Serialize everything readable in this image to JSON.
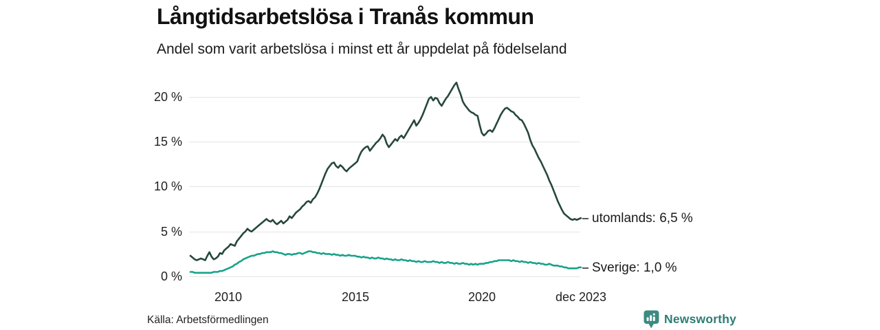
{
  "footer": {
    "source": "Källa: Arbetsförmedlingen",
    "brand": "Newsworthy"
  },
  "colors": {
    "utomlands_line": "#26473d",
    "sverige_line": "#17a28a",
    "grid": "#e4e4e4",
    "brand_teal": "#2e7d74",
    "brand_icon": "#3c8a80"
  },
  "chart_data": {
    "type": "line",
    "title": "Långtidsarbetslösa i Tranås kommun",
    "subtitle": "Andel som varit arbetslösa i minst ett år uppdelat på födelseland",
    "xlabel": "",
    "ylabel": "",
    "ylim": [
      0,
      22
    ],
    "yticks": [
      "20 %",
      "15 %",
      "10 %",
      "5 %",
      "0 %"
    ],
    "xticks": [
      {
        "label": "2010"
      },
      {
        "label": "2015"
      },
      {
        "label": "2020"
      },
      {
        "label": "dec 2023"
      }
    ],
    "grid": "horizontal-only",
    "legend_position": "end-of-line",
    "x_start": "2008-07",
    "x_end": "2023-12",
    "x_interval": "monthly",
    "series": [
      {
        "name": "utomlands",
        "label": "utomlands: 6,5 %",
        "end_value": 6.5,
        "color": "#26473d",
        "values": [
          2.3,
          2.1,
          1.9,
          1.8,
          1.9,
          2.0,
          1.9,
          1.8,
          2.3,
          2.7,
          2.2,
          1.9,
          2.0,
          2.2,
          2.6,
          2.5,
          2.9,
          3.1,
          3.3,
          3.6,
          3.5,
          3.4,
          3.9,
          4.2,
          4.5,
          4.8,
          5.0,
          5.3,
          5.1,
          5.0,
          5.2,
          5.4,
          5.6,
          5.8,
          6.0,
          6.2,
          6.4,
          6.2,
          6.1,
          6.3,
          6.0,
          5.8,
          6.0,
          6.2,
          5.9,
          6.1,
          6.3,
          6.7,
          6.5,
          6.8,
          7.1,
          7.3,
          7.5,
          7.8,
          8.0,
          8.3,
          8.4,
          8.2,
          8.6,
          8.8,
          9.2,
          9.7,
          10.3,
          10.9,
          11.5,
          12.0,
          12.3,
          12.6,
          12.7,
          12.3,
          12.1,
          12.4,
          12.2,
          11.9,
          11.7,
          12.0,
          12.2,
          12.4,
          12.6,
          12.8,
          13.4,
          13.9,
          14.2,
          14.4,
          14.5,
          14.0,
          14.3,
          14.6,
          14.9,
          15.1,
          15.4,
          15.8,
          15.5,
          14.8,
          14.4,
          14.7,
          15.0,
          15.3,
          15.1,
          15.5,
          15.7,
          15.4,
          15.8,
          16.2,
          16.6,
          17.0,
          17.4,
          16.8,
          17.1,
          17.5,
          18.0,
          18.6,
          19.2,
          19.8,
          20.0,
          19.6,
          19.9,
          19.8,
          19.3,
          19.0,
          19.4,
          19.8,
          20.1,
          20.5,
          20.9,
          21.3,
          21.6,
          20.9,
          20.3,
          19.5,
          19.1,
          18.8,
          18.5,
          18.3,
          18.2,
          18.0,
          17.9,
          16.9,
          16.0,
          15.7,
          15.9,
          16.2,
          16.3,
          16.1,
          16.5,
          17.0,
          17.5,
          18.0,
          18.4,
          18.7,
          18.8,
          18.6,
          18.4,
          18.3,
          18.0,
          17.8,
          17.5,
          17.4,
          17.0,
          16.5,
          16.0,
          15.2,
          14.6,
          14.2,
          13.7,
          13.2,
          12.8,
          12.3,
          11.8,
          11.3,
          10.7,
          10.2,
          9.6,
          9.0,
          8.4,
          7.9,
          7.4,
          7.0,
          6.8,
          6.6,
          6.4,
          6.3,
          6.4,
          6.3,
          6.4,
          6.5
        ]
      },
      {
        "name": "sverige",
        "label": "Sverige: 1,0 %",
        "end_value": 1.0,
        "color": "#17a28a",
        "values": [
          0.5,
          0.5,
          0.4,
          0.4,
          0.4,
          0.4,
          0.4,
          0.4,
          0.4,
          0.4,
          0.4,
          0.5,
          0.5,
          0.5,
          0.6,
          0.6,
          0.7,
          0.8,
          0.9,
          1.0,
          1.1,
          1.3,
          1.4,
          1.6,
          1.7,
          1.9,
          2.0,
          2.1,
          2.2,
          2.3,
          2.3,
          2.4,
          2.5,
          2.5,
          2.6,
          2.6,
          2.7,
          2.7,
          2.7,
          2.8,
          2.7,
          2.7,
          2.6,
          2.6,
          2.5,
          2.4,
          2.5,
          2.5,
          2.4,
          2.5,
          2.5,
          2.6,
          2.6,
          2.5,
          2.6,
          2.7,
          2.8,
          2.8,
          2.7,
          2.7,
          2.6,
          2.6,
          2.5,
          2.6,
          2.5,
          2.5,
          2.5,
          2.4,
          2.5,
          2.4,
          2.4,
          2.3,
          2.4,
          2.3,
          2.3,
          2.4,
          2.3,
          2.3,
          2.3,
          2.2,
          2.2,
          2.1,
          2.2,
          2.1,
          2.1,
          2.0,
          2.1,
          2.0,
          2.0,
          2.1,
          2.0,
          2.0,
          1.9,
          2.0,
          1.9,
          1.9,
          1.8,
          1.9,
          1.8,
          1.8,
          1.9,
          1.8,
          1.8,
          1.7,
          1.8,
          1.7,
          1.7,
          1.6,
          1.7,
          1.6,
          1.6,
          1.7,
          1.6,
          1.6,
          1.6,
          1.7,
          1.6,
          1.6,
          1.5,
          1.6,
          1.5,
          1.5,
          1.6,
          1.5,
          1.5,
          1.4,
          1.5,
          1.4,
          1.4,
          1.5,
          1.4,
          1.4,
          1.3,
          1.4,
          1.3,
          1.4,
          1.3,
          1.4,
          1.4,
          1.4,
          1.5,
          1.5,
          1.6,
          1.6,
          1.7,
          1.7,
          1.8,
          1.8,
          1.8,
          1.8,
          1.8,
          1.8,
          1.7,
          1.8,
          1.7,
          1.7,
          1.6,
          1.7,
          1.6,
          1.6,
          1.5,
          1.6,
          1.5,
          1.5,
          1.4,
          1.5,
          1.4,
          1.4,
          1.3,
          1.3,
          1.4,
          1.3,
          1.2,
          1.2,
          1.2,
          1.1,
          1.1,
          1.0,
          1.0,
          0.9,
          0.9,
          0.9,
          0.9,
          0.9,
          1.0,
          1.0
        ]
      }
    ]
  }
}
